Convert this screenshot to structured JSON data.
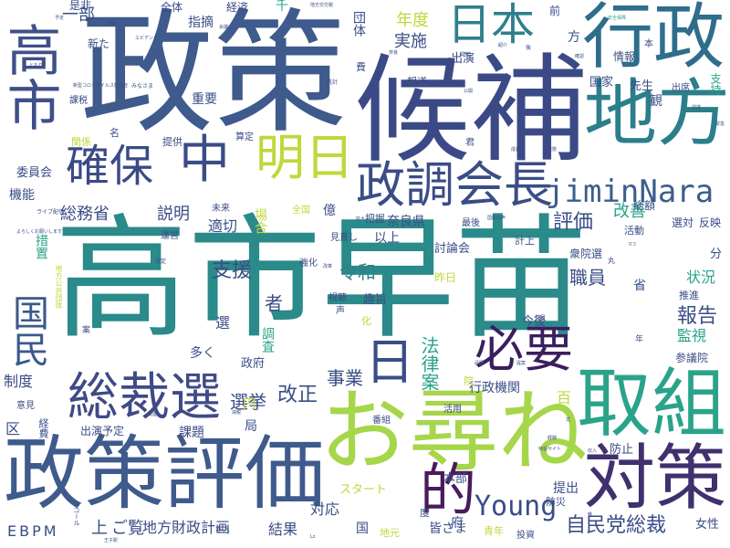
{
  "cloud": {
    "title": "word cloud",
    "words": [
      {
        "text": "高市早苗",
        "weight": 100,
        "color": "#2b8a8a"
      },
      {
        "text": "政策",
        "weight": 72,
        "color": "#3f5a8c"
      },
      {
        "text": "候補",
        "weight": 70,
        "color": "#3b4a86"
      },
      {
        "text": "高市",
        "weight": 60,
        "color": "#3f4f8a"
      },
      {
        "text": "お尋ね",
        "weight": 64,
        "color": "#a6d64a"
      },
      {
        "text": "政策評価",
        "weight": 58,
        "color": "#3f5a8c"
      },
      {
        "text": "行政",
        "weight": 50,
        "color": "#2f6d8c"
      },
      {
        "text": "地方",
        "weight": 50,
        "color": "#2a7f8a"
      },
      {
        "text": "取組",
        "weight": 48,
        "color": "#2aa38a"
      },
      {
        "text": "対策",
        "weight": 46,
        "color": "#40306e"
      },
      {
        "text": "総裁選",
        "weight": 44,
        "color": "#3f4a86"
      },
      {
        "text": "国民",
        "weight": 40,
        "color": "#3b5a8c"
      },
      {
        "text": "日本",
        "weight": 38,
        "color": "#2f7f8c"
      },
      {
        "text": "確保",
        "weight": 36,
        "color": "#3b4a86"
      },
      {
        "text": "中",
        "weight": 36,
        "color": "#3a4d86"
      },
      {
        "text": "明日",
        "weight": 36,
        "color": "#bfd83a"
      },
      {
        "text": "政調会長",
        "weight": 38,
        "color": "#3a4d86"
      },
      {
        "text": "必要",
        "weight": 38,
        "color": "#3a1e5e"
      },
      {
        "text": "日",
        "weight": 36,
        "color": "#3a4d86"
      },
      {
        "text": "的",
        "weight": 36,
        "color": "#4a1a5e"
      },
      {
        "text": "jiminNara",
        "weight": 30,
        "color": "#3b5e8c"
      },
      {
        "text": "Young",
        "weight": 22,
        "color": "#3a4d86"
      },
      {
        "text": "自民党総裁",
        "weight": 18,
        "color": "#3a4d86"
      },
      {
        "text": "法律案",
        "weight": 18,
        "color": "#2aa38a"
      },
      {
        "text": "令和",
        "weight": 16,
        "color": "#2f7f8c"
      },
      {
        "text": "評価",
        "weight": 16,
        "color": "#3a4d86"
      },
      {
        "text": "職員",
        "weight": 16,
        "color": "#3a4d86"
      },
      {
        "text": "報告",
        "weight": 16,
        "color": "#3a4d86"
      },
      {
        "text": "改正",
        "weight": 16,
        "color": "#3a4d86"
      },
      {
        "text": "選挙",
        "weight": 16,
        "color": "#3a4d86"
      },
      {
        "text": "事業",
        "weight": 16,
        "color": "#3a4d86"
      },
      {
        "text": "総務省",
        "weight": 15,
        "color": "#3a4d86"
      },
      {
        "text": "支援",
        "weight": 16,
        "color": "#3a4d86"
      },
      {
        "text": "説明",
        "weight": 15,
        "color": "#3a4d86"
      },
      {
        "text": "適切",
        "weight": 14,
        "color": "#3a4d86"
      },
      {
        "text": "状況",
        "weight": 14,
        "color": "#2aa38a"
      },
      {
        "text": "監視",
        "weight": 14,
        "color": "#2aa38a"
      },
      {
        "text": "制度",
        "weight": 14,
        "color": "#3a4d86"
      },
      {
        "text": "改善",
        "weight": 14,
        "color": "#2aa38a"
      },
      {
        "text": "実施",
        "weight": 14,
        "color": "#3a4d86"
      },
      {
        "text": "年度",
        "weight": 14,
        "color": "#bfd83a"
      },
      {
        "text": "一部",
        "weight": 14,
        "color": "#3a4d86"
      },
      {
        "text": "奈良県",
        "weight": 12,
        "color": "#3a4d86"
      },
      {
        "text": "EBPM",
        "weight": 14,
        "color": "#3a4d86"
      },
      {
        "text": "上",
        "weight": 14,
        "color": "#3a4d86"
      },
      {
        "text": "ご覧",
        "weight": 14,
        "color": "#3a4d86"
      },
      {
        "text": "地方財政計画",
        "weight": 13,
        "color": "#3a4d86"
      },
      {
        "text": "結果",
        "weight": 13,
        "color": "#3a4d86"
      },
      {
        "text": "対応",
        "weight": 13,
        "color": "#3a4d86"
      },
      {
        "text": "国",
        "weight": 12,
        "color": "#3a4d86"
      },
      {
        "text": "府",
        "weight": 12,
        "color": "#3a4d86"
      },
      {
        "text": "女性",
        "weight": 11,
        "color": "#3a4d86"
      },
      {
        "text": "参議院",
        "weight": 10,
        "color": "#3a4d86"
      },
      {
        "text": "提出",
        "weight": 11,
        "color": "#3a4d86"
      },
      {
        "text": "防止",
        "weight": 10,
        "color": "#3a4d86"
      },
      {
        "text": "スタート",
        "weight": 10,
        "color": "#bfd83a"
      },
      {
        "text": "本部",
        "weight": 10,
        "color": "#3a4d86"
      },
      {
        "text": "皆さま",
        "weight": 10,
        "color": "#3a4d86"
      },
      {
        "text": "青年",
        "weight": 9,
        "color": "#bfd83a"
      },
      {
        "text": "投資",
        "weight": 8,
        "color": "#3a4d86"
      },
      {
        "text": "地元",
        "weight": 9,
        "color": "#bfd83a"
      },
      {
        "text": "出演予定",
        "weight": 10,
        "color": "#3a4d86"
      },
      {
        "text": "課題",
        "weight": 11,
        "color": "#3a4d86"
      },
      {
        "text": "局",
        "weight": 11,
        "color": "#3a4d86"
      },
      {
        "text": "円",
        "weight": 11,
        "color": "#bfd83a"
      },
      {
        "text": "区",
        "weight": 13,
        "color": "#3a4d86"
      },
      {
        "text": "経費",
        "weight": 9,
        "color": "#3a4d86"
      },
      {
        "text": "意見",
        "weight": 8,
        "color": "#3a4d86"
      },
      {
        "text": "多く",
        "weight": 11,
        "color": "#3a4d86"
      },
      {
        "text": "政府",
        "weight": 10,
        "color": "#3a4d86"
      },
      {
        "text": "調査",
        "weight": 11,
        "color": "#2aa38a"
      },
      {
        "text": "行政機関",
        "weight": 11,
        "color": "#3a4d86"
      },
      {
        "text": "今後",
        "weight": 10,
        "color": "#3a4d86"
      },
      {
        "text": "趣旨",
        "weight": 10,
        "color": "#3a4d86"
      },
      {
        "text": "視聴",
        "weight": 8,
        "color": "#3a4d86"
      },
      {
        "text": "強化",
        "weight": 8,
        "color": "#3a4d86"
      },
      {
        "text": "昨日",
        "weight": 9,
        "color": "#bfd83a"
      },
      {
        "text": "討論会",
        "weight": 10,
        "color": "#3a4d86"
      },
      {
        "text": "以上",
        "weight": 11,
        "color": "#3a4d86"
      },
      {
        "text": "億",
        "weight": 11,
        "color": "#3a4d86"
      },
      {
        "text": "見直し",
        "weight": 8,
        "color": "#3a4d86"
      },
      {
        "text": "場合",
        "weight": 11,
        "color": "#bfd83a"
      },
      {
        "text": "未来",
        "weight": 8,
        "color": "#3a4d86"
      },
      {
        "text": "運営",
        "weight": 8,
        "color": "#3a4d86"
      },
      {
        "text": "措置",
        "weight": 11,
        "color": "#2aa38a"
      },
      {
        "text": "機能",
        "weight": 11,
        "color": "#3a4d86"
      },
      {
        "text": "委員会",
        "weight": 10,
        "color": "#3a4d86"
      },
      {
        "text": "提供",
        "weight": 9,
        "color": "#3a4d86"
      },
      {
        "text": "関係",
        "weight": 9,
        "color": "#bfd83a"
      },
      {
        "text": "課税",
        "weight": 8,
        "color": "#3a4d86"
      },
      {
        "text": "新た",
        "weight": 9,
        "color": "#3a4d86"
      },
      {
        "text": "重要",
        "weight": 11,
        "color": "#3a4d86"
      },
      {
        "text": "指摘",
        "weight": 11,
        "color": "#3a4d86"
      },
      {
        "text": "全体",
        "weight": 9,
        "color": "#3a4d86"
      },
      {
        "text": "経済",
        "weight": 9,
        "color": "#3a4d86"
      },
      {
        "text": "団体",
        "weight": 10,
        "color": "#3a4d86"
      },
      {
        "text": "千",
        "weight": 10,
        "color": "#2aa38a"
      },
      {
        "text": "是非",
        "weight": 9,
        "color": "#3a4d86"
      },
      {
        "text": "方",
        "weight": 11,
        "color": "#3a4d86"
      },
      {
        "text": "出演",
        "weight": 10,
        "color": "#3a4d86"
      },
      {
        "text": "報道",
        "weight": 8,
        "color": "#3a4d86"
      },
      {
        "text": "国家",
        "weight": 10,
        "color": "#3a4d86"
      },
      {
        "text": "先生",
        "weight": 10,
        "color": "#3a4d86"
      },
      {
        "text": "情報",
        "weight": 9,
        "color": "#3a4d86"
      },
      {
        "text": "前",
        "weight": 9,
        "color": "#3a4d86"
      },
      {
        "text": "観",
        "weight": 10,
        "color": "#3a4d86"
      },
      {
        "text": "支持",
        "weight": 9,
        "color": "#2aa38a"
      },
      {
        "text": "出席",
        "weight": 8,
        "color": "#3a4d86"
      },
      {
        "text": "活動",
        "weight": 8,
        "color": "#3a4d86"
      },
      {
        "text": "選対",
        "weight": 9,
        "color": "#3a4d86"
      },
      {
        "text": "反映",
        "weight": 9,
        "color": "#3a4d86"
      },
      {
        "text": "総額",
        "weight": 9,
        "color": "#3a4d86"
      },
      {
        "text": "衆院選",
        "weight": 9,
        "color": "#3a4d86"
      },
      {
        "text": "計上",
        "weight": 8,
        "color": "#3a4d86"
      },
      {
        "text": "最後",
        "weight": 8,
        "color": "#3a4d86"
      },
      {
        "text": "分",
        "weight": 9,
        "color": "#3a4d86"
      },
      {
        "text": "推進",
        "weight": 8,
        "color": "#3a4d86"
      },
      {
        "text": "省",
        "weight": 10,
        "color": "#3a4d86"
      },
      {
        "text": "把握",
        "weight": 8,
        "color": "#3a4d86"
      },
      {
        "text": "全国",
        "weight": 8,
        "color": "#bfd83a"
      },
      {
        "text": "者",
        "weight": 12,
        "color": "#3a4d86"
      },
      {
        "text": "選",
        "weight": 11,
        "color": "#3a4d86"
      },
      {
        "text": "名",
        "weight": 9,
        "color": "#3a4d86"
      },
      {
        "text": "算定",
        "weight": 8,
        "color": "#3a4d86"
      },
      {
        "text": "百",
        "weight": 11,
        "color": "#bfd83a"
      },
      {
        "text": "活用",
        "weight": 8,
        "color": "#3a4d86"
      },
      {
        "text": "番組",
        "weight": 8,
        "color": "#3a4d86"
      },
      {
        "text": "院",
        "weight": 9,
        "color": "#bfd83a"
      },
      {
        "text": "防災",
        "weight": 8,
        "color": "#3a4d86"
      },
      {
        "text": "度",
        "weight": 8,
        "color": "#3a4d86"
      },
      {
        "text": "年",
        "weight": 7,
        "color": "#3a4d86"
      },
      {
        "text": "化",
        "weight": 8,
        "color": "#bfd83a"
      },
      {
        "text": "声",
        "weight": 8,
        "color": "#3a4d86"
      },
      {
        "text": "君",
        "weight": 8,
        "color": "#3a4d86"
      },
      {
        "text": "費",
        "weight": 8,
        "color": "#3a4d86"
      },
      {
        "text": "本",
        "weight": 7,
        "color": "#3a4d86"
      },
      {
        "text": "本人",
        "weight": 6,
        "color": "#3a4d86"
      },
      {
        "text": "地方公共団体",
        "weight": 6,
        "color": "#bfd83a"
      },
      {
        "text": "ライブ配信",
        "weight": 6,
        "color": "#3a4d86"
      },
      {
        "text": "新型コロナウイルス感染症",
        "weight": 5,
        "color": "#3a4d86"
      },
      {
        "text": "よろしくお願いします",
        "weight": 5,
        "color": "#3a4d86"
      },
      {
        "text": "地方交付税",
        "weight": 5,
        "color": "#3a4d86"
      },
      {
        "text": "みなさま",
        "weight": 5,
        "color": "#3a4d86"
      },
      {
        "text": "特設サイト",
        "weight": 5,
        "color": "#3a4d86"
      },
      {
        "text": "国民の声",
        "weight": 5,
        "color": "#3a4d86"
      },
      {
        "text": "党員",
        "weight": 6,
        "color": "#3a4d86"
      },
      {
        "text": "紹介",
        "weight": 5,
        "color": "#3a4d86"
      },
      {
        "text": "開催",
        "weight": 5,
        "color": "#3a4d86"
      },
      {
        "text": "予定",
        "weight": 5,
        "color": "#3a4d86"
      },
      {
        "text": "信頼",
        "weight": 5,
        "color": "#3a4d86"
      },
      {
        "text": "会議",
        "weight": 5,
        "color": "#3a4d86"
      },
      {
        "text": "とおり",
        "weight": 5,
        "color": "#3a4d86"
      },
      {
        "text": "安全保障",
        "weight": 5,
        "color": "#2aa38a"
      },
      {
        "text": "奈良",
        "weight": 5,
        "color": "#3a4d86"
      },
      {
        "text": "公開",
        "weight": 5,
        "color": "#3a4d86"
      },
      {
        "text": "質問",
        "weight": 5,
        "color": "#3a4d86"
      },
      {
        "text": "認識",
        "weight": 5,
        "color": "#3a4d86"
      },
      {
        "text": "緊急",
        "weight": 5,
        "color": "#3a4d86"
      },
      {
        "text": "成長",
        "weight": 5,
        "color": "#3a4d86"
      },
      {
        "text": "状態",
        "weight": 5,
        "color": "#3a4d86"
      },
      {
        "text": "減税",
        "weight": 5,
        "color": "#3a4d86"
      },
      {
        "text": "関連",
        "weight": 5,
        "color": "#3a4d86"
      },
      {
        "text": "改革",
        "weight": 5,
        "color": "#3a4d86"
      },
      {
        "text": "拡大",
        "weight": 5,
        "color": "#3a4d86"
      },
      {
        "text": "提案",
        "weight": 5,
        "color": "#3a4d86"
      },
      {
        "text": "武器",
        "weight": 5,
        "color": "#3a4d86"
      },
      {
        "text": "経験",
        "weight": 5,
        "color": "#3a4d86"
      },
      {
        "text": "確認",
        "weight": 5,
        "color": "#3a4d86"
      },
      {
        "text": "式",
        "weight": 5,
        "color": "#3a4d86"
      },
      {
        "text": "収入",
        "weight": 5,
        "color": "#3a4d86"
      },
      {
        "text": "Lz",
        "weight": 5,
        "color": "#3a4d86"
      },
      {
        "text": "王子駅",
        "weight": 5,
        "color": "#3a4d86"
      },
      {
        "text": "エビデンス",
        "weight": 5,
        "color": "#3a4d86"
      },
      {
        "text": "エコール",
        "weight": 5,
        "color": "#3a4d86"
      },
      {
        "text": "マミ",
        "weight": 5,
        "color": "#3a4d86"
      },
      {
        "text": "決定",
        "weight": 5,
        "color": "#3a4d86"
      },
      {
        "text": "統計",
        "weight": 5,
        "color": "#3a4d86"
      },
      {
        "text": "鑑",
        "weight": 5,
        "color": "#3a4d86"
      },
      {
        "text": "丸",
        "weight": 5,
        "color": "#3a4d86"
      },
      {
        "text": "案",
        "weight": 5,
        "color": "#3a4d86"
      },
      {
        "text": "後",
        "weight": 5,
        "color": "#3a4d86"
      },
      {
        "text": "間",
        "weight": 6,
        "color": "#3a4d86"
      },
      {
        "text": "今",
        "weight": 5,
        "color": "#3a4d86"
      }
    ]
  }
}
